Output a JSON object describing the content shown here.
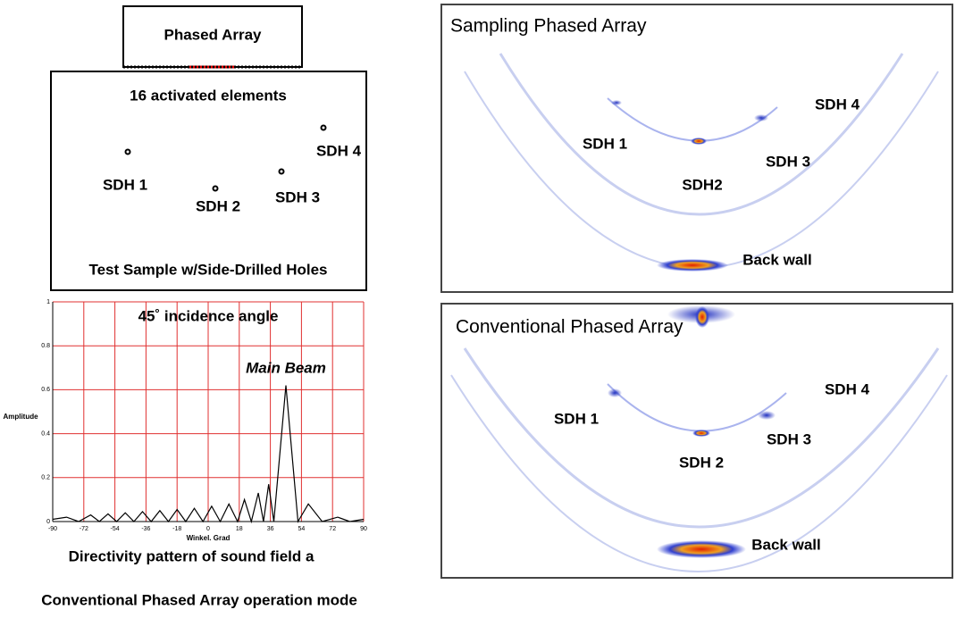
{
  "setup": {
    "probe_label": "Phased Array",
    "activated": "16 activated elements",
    "sample_label": "Test Sample w/Side-Drilled Holes",
    "holes": [
      "SDH 1",
      "SDH 2",
      "SDH 3",
      "SDH 4"
    ]
  },
  "directivity": {
    "type": "line",
    "title": "45˚ incidence angle",
    "annotation": "Main Beam",
    "x_label": "Winkel. Grad",
    "y_label": "Amplitude",
    "caption": "Directivity pattern of sound field a",
    "xlim": [
      -90,
      90
    ],
    "ylim": [
      0,
      1
    ],
    "xticks": [
      -90,
      -72,
      -54,
      -36,
      -18,
      0,
      18,
      36,
      54,
      72,
      90
    ],
    "yticks": [
      0,
      0.2,
      0.4,
      0.6,
      0.8,
      1
    ],
    "grid": true,
    "color": "#000000",
    "grid_color": "#e03030",
    "x": [
      -90,
      -82,
      -75,
      -68,
      -63,
      -58,
      -53,
      -48,
      -43,
      -38,
      -33,
      -28,
      -23,
      -18,
      -13,
      -8,
      -3,
      2,
      7,
      12,
      17,
      21,
      25,
      29,
      32,
      35,
      38,
      45,
      52,
      58,
      66,
      75,
      82,
      90
    ],
    "values": [
      0.01,
      0.02,
      0,
      0.03,
      0,
      0.035,
      0,
      0.04,
      0,
      0.045,
      0,
      0.05,
      0,
      0.055,
      0,
      0.06,
      0,
      0.07,
      0,
      0.08,
      0,
      0.1,
      0,
      0.13,
      0,
      0.17,
      0,
      0.62,
      0,
      0.08,
      0,
      0.02,
      0,
      0.01
    ]
  },
  "footer": "Conventional Phased Array operation mode",
  "sampling": {
    "title": "Sampling Phased Array",
    "labels": [
      "SDH 1",
      "SDH2",
      "SDH 3",
      "SDH 4",
      "Back wall"
    ]
  },
  "conventional": {
    "title": "Conventional Phased Array",
    "labels": [
      "SDH 1",
      "SDH 2",
      "SDH 3",
      "SDH 4",
      "Back wall"
    ]
  }
}
